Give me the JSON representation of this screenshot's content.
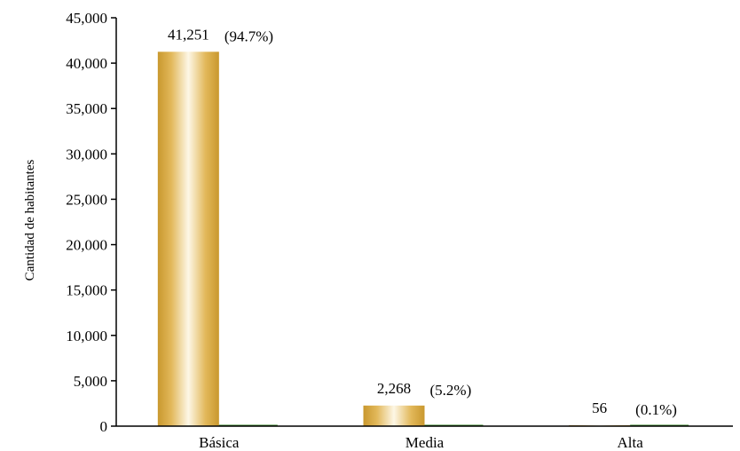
{
  "chart_data": {
    "type": "bar",
    "ylabel": "Cantidad de habitantes",
    "xlabel": "",
    "title": "",
    "ylim": [
      0,
      45000
    ],
    "yticks": [
      0,
      5000,
      10000,
      15000,
      20000,
      25000,
      30000,
      35000,
      40000,
      45000
    ],
    "ytick_labels": [
      "0",
      "5,000",
      "10,000",
      "15,000",
      "20,000",
      "25,000",
      "30,000",
      "35,000",
      "40,000",
      "45,000"
    ],
    "categories": [
      "Básica",
      "Media",
      "Alta"
    ],
    "values": [
      41251,
      2268,
      56
    ],
    "value_labels": [
      "41,251",
      "2,268",
      "56"
    ],
    "percent_labels": [
      "(94.7%)",
      "(5.2%)",
      "(0.1%)"
    ],
    "secondary_series_values": [
      0,
      0,
      0
    ],
    "grid": false,
    "colors": {
      "bar_edge": "#d4a339",
      "bar_highlight": "#fdf7e6",
      "secondary_bar": "#2e7d1e"
    }
  }
}
